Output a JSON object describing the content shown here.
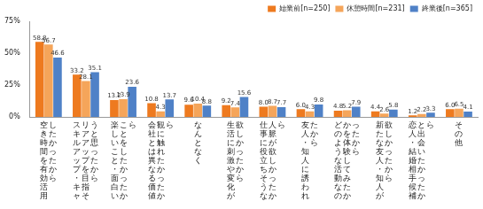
{
  "chart_data": {
    "type": "bar",
    "categories": [
      "空き時間を有効活用したかったから",
      "スキルアップ・キャリアアップを目指そうと思ったから",
      "楽しいこと・面白いことをしたかったから",
      "会社とは異なる価値観に触れたかったから",
      "なんとなく",
      "生活に刺激や変化が欲しかったから",
      "仕事に役立ちそうな人脈が欲しかったから",
      "友人・知人に誘われたから",
      "どのような活動なのかを体験してみたかったから",
      "新たな友人・知人が欲しかったから",
      "恋人・結婚相手候補と出会いたかったから",
      "その他"
    ],
    "series": [
      {
        "name": "始業前[n=250]",
        "color": "#ee7a1f",
        "values": [
          58.8,
          33.2,
          13.2,
          10.8,
          9.6,
          9.2,
          8.0,
          6.0,
          4.8,
          4.4,
          1.2,
          6.0
        ],
        "value_labels": [
          "58.8",
          "33.2",
          "13.2",
          "10.8",
          "9.6",
          "9.2",
          "8.0",
          "6.0",
          "4.8",
          "4.4",
          "1.2",
          "6.0"
        ]
      },
      {
        "name": "休憩時間[n=231]",
        "color": "#f5a55a",
        "values": [
          56.7,
          28.1,
          13.9,
          4.3,
          10.4,
          7.4,
          8.7,
          4.3,
          5.2,
          2.6,
          2.2,
          6.5
        ],
        "value_labels": [
          "56.7",
          "28.1",
          "13.9",
          "4.3",
          "10.4",
          "7.4",
          "8.7",
          "4.3",
          "5.2",
          "2.6",
          "2.2",
          "6.5"
        ]
      },
      {
        "name": "終業後[n=365]",
        "color": "#4f81c7",
        "values": [
          46.6,
          35.1,
          23.6,
          13.7,
          8.8,
          15.6,
          7.7,
          9.8,
          7.9,
          5.8,
          3.3,
          4.1
        ],
        "value_labels": [
          "46.6",
          "35.1",
          "23.6",
          "13.7",
          "8.8",
          "15.6",
          "7.7",
          "9.8",
          "7.9",
          "5.8",
          "3.3",
          "4.1"
        ]
      }
    ],
    "ylim": [
      0,
      75
    ],
    "yticks": [
      {
        "value": 0,
        "label": "0%"
      },
      {
        "value": 25,
        "label": "25%"
      },
      {
        "value": 50,
        "label": "50%"
      },
      {
        "value": 75,
        "label": "75%"
      }
    ],
    "grid": false,
    "legend": "top-right",
    "data_labels": true
  }
}
